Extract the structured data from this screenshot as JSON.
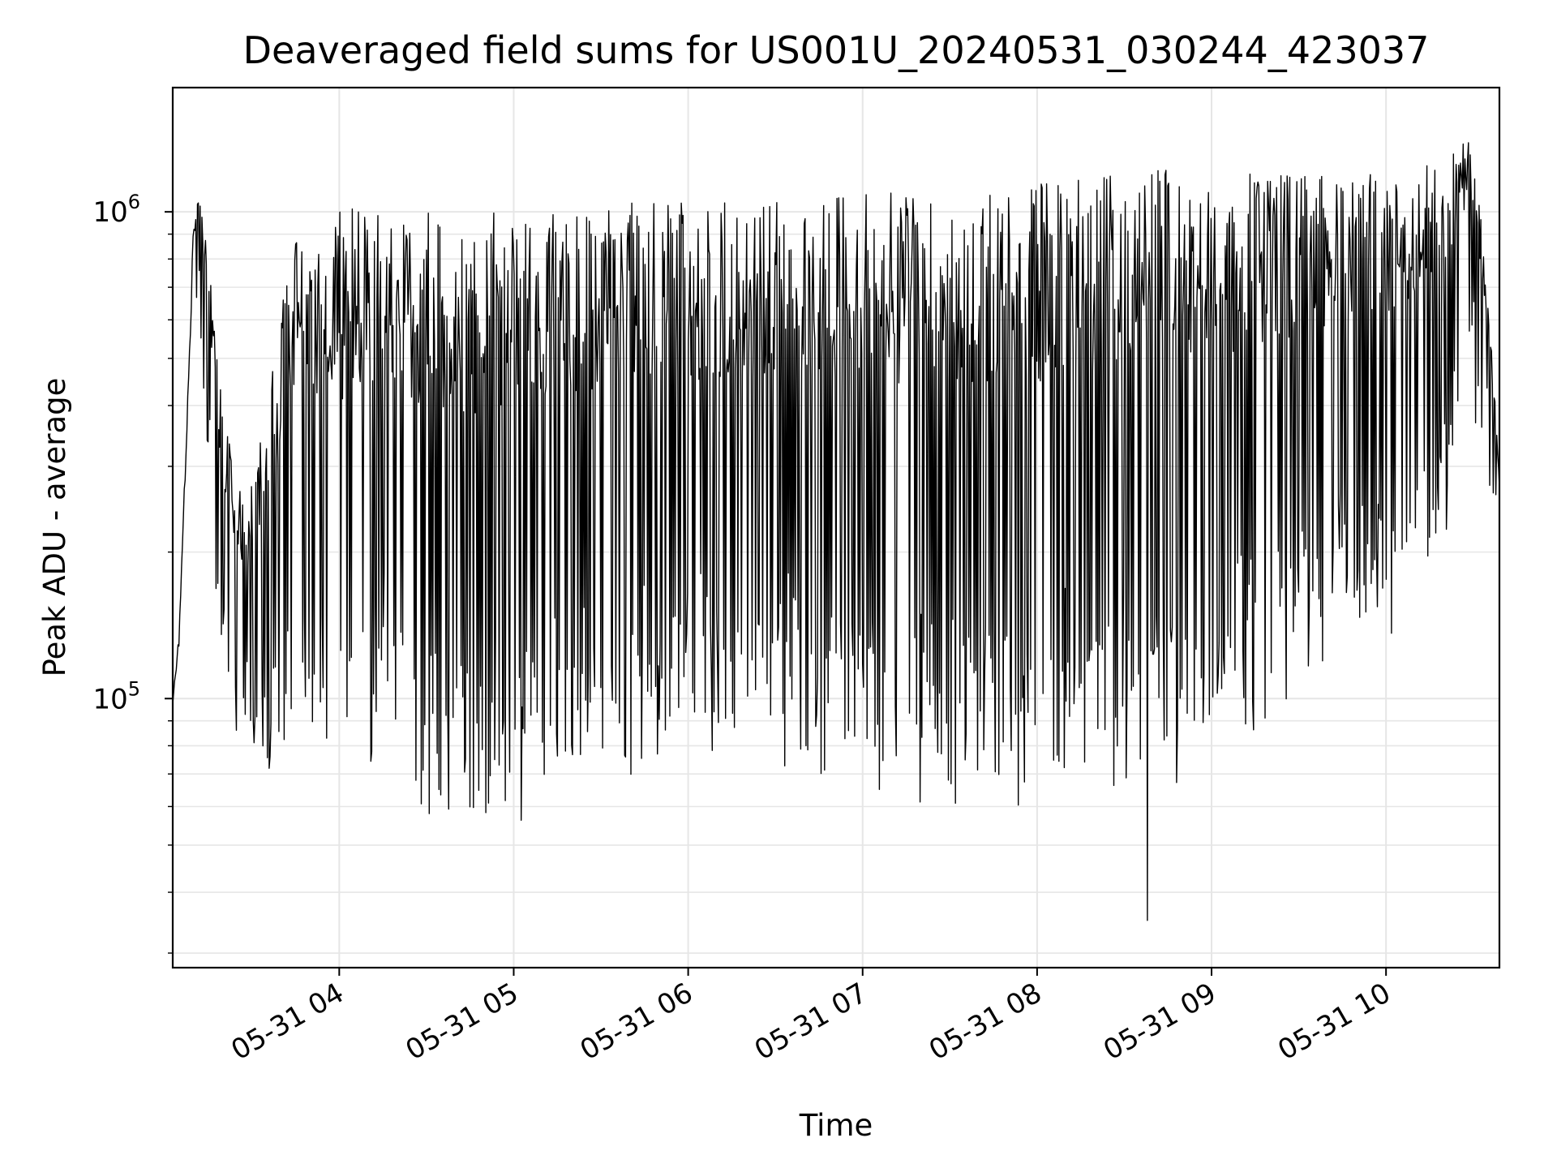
{
  "chart_data": {
    "type": "line",
    "title": "Deaveraged field sums for US001U_20240531_030244_423037",
    "xlabel": "Time",
    "ylabel": "Peak ADU - average",
    "x_ticks": [
      "05-31 04",
      "05-31 05",
      "05-31 06",
      "05-31 07",
      "05-31 08",
      "05-31 09",
      "05-31 10"
    ],
    "x_tick_times": [
      "2024-05-31 04:00",
      "2024-05-31 05:00",
      "2024-05-31 06:00",
      "2024-05-31 07:00",
      "2024-05-31 08:00",
      "2024-05-31 09:00",
      "2024-05-31 10:00"
    ],
    "xlim": [
      "2024-05-31 03:02:44",
      "2024-05-31 10:39:00"
    ],
    "y_ticks": [
      {
        "value": 100000,
        "base": "10",
        "exp": "5"
      },
      {
        "value": 1000000,
        "base": "10",
        "exp": "6"
      }
    ],
    "yscale": "log",
    "ylim": [
      28000,
      1800000
    ],
    "grid": true,
    "line_color": "#000000",
    "grid_color": "#e6e6e6",
    "series": [
      {
        "x": [
          "2024-05-31 03:02:44",
          "2024-05-31 03:05",
          "2024-05-31 03:08",
          "2024-05-31 03:10",
          "2024-05-31 03:12",
          "2024-05-31 03:14",
          "2024-05-31 03:16",
          "2024-05-31 03:18",
          "2024-05-31 03:20",
          "2024-05-31 03:24",
          "2024-05-31 03:28",
          "2024-05-31 03:35",
          "2024-05-31 03:45",
          "2024-05-31 04:00",
          "2024-05-31 04:15",
          "2024-05-31 04:30",
          "2024-05-31 04:45",
          "2024-05-31 05:00",
          "2024-05-31 05:20",
          "2024-05-31 05:40",
          "2024-05-31 06:00",
          "2024-05-31 06:30",
          "2024-05-31 07:00",
          "2024-05-31 07:30",
          "2024-05-31 08:00",
          "2024-05-31 08:20",
          "2024-05-31 08:40",
          "2024-05-31 09:00",
          "2024-05-31 09:20",
          "2024-05-31 09:40",
          "2024-05-31 10:00",
          "2024-05-31 10:15",
          "2024-05-31 10:30",
          "2024-05-31 10:35",
          "2024-05-31 10:37",
          "2024-05-31 10:39"
        ],
        "lower": [
          95000,
          130000,
          400000,
          900000,
          800000,
          500000,
          300000,
          180000,
          130000,
          110000,
          95000,
          85000,
          75000,
          75000,
          95000,
          70000,
          65000,
          75000,
          80000,
          90000,
          95000,
          95000,
          85000,
          80000,
          75000,
          80000,
          85000,
          100000,
          120000,
          150000,
          180000,
          220000,
          500000,
          400000,
          250000,
          220000
        ],
        "upper": [
          100000,
          140000,
          450000,
          1000000,
          1100000,
          900000,
          700000,
          500000,
          400000,
          300000,
          250000,
          400000,
          1000000,
          1000000,
          1050000,
          1000000,
          1000000,
          1000000,
          1000000,
          1050000,
          1050000,
          1050000,
          1100000,
          1100000,
          1150000,
          1200000,
          1250000,
          1200000,
          1200000,
          1200000,
          1200000,
          1300000,
          1500000,
          700000,
          450000,
          300000
        ],
        "min_spike": {
          "x": "2024-05-31 08:38",
          "y": 35000
        }
      }
    ]
  }
}
